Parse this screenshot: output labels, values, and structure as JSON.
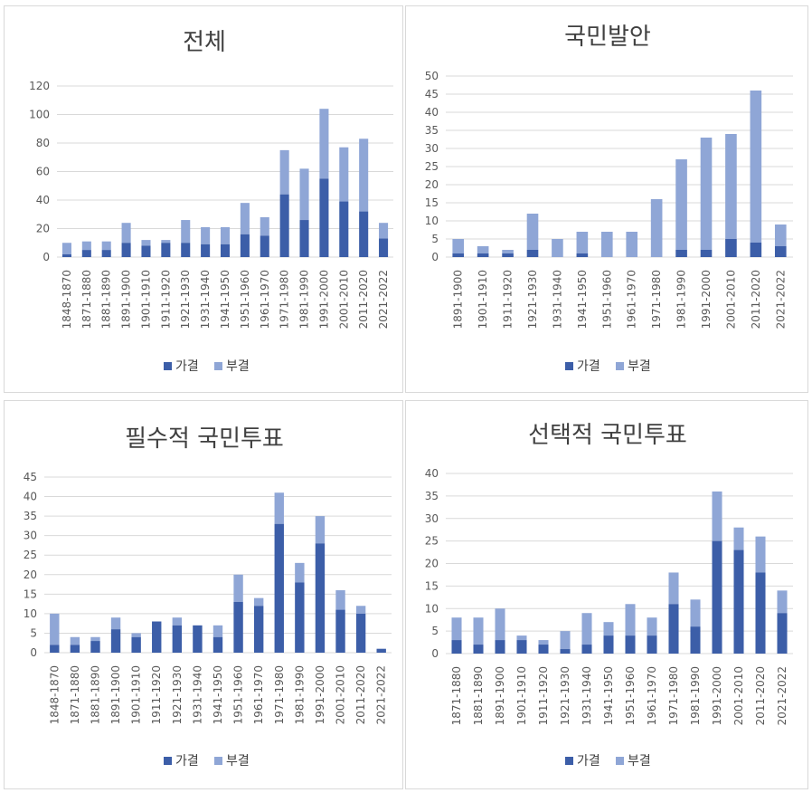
{
  "colors": {
    "passed": "#3c5ea8",
    "rejected": "#8fa6d6"
  },
  "legend": {
    "passed": "가결",
    "rejected": "부결"
  },
  "chart_data": [
    {
      "type": "bar",
      "stacked": true,
      "title": "전체",
      "categories": [
        "1848-1870",
        "1871-1880",
        "1881-1890",
        "1891-1900",
        "1901-1910",
        "1911-1920",
        "1921-1930",
        "1931-1940",
        "1941-1950",
        "1951-1960",
        "1961-1970",
        "1971-1980",
        "1981-1990",
        "1991-2000",
        "2001-2010",
        "2011-2020",
        "2021-2022"
      ],
      "series": [
        {
          "name": "가결",
          "values": [
            2,
            5,
            5,
            10,
            8,
            10,
            10,
            9,
            9,
            16,
            15,
            44,
            26,
            55,
            39,
            32,
            13
          ]
        },
        {
          "name": "부결",
          "values": [
            8,
            6,
            6,
            14,
            4,
            2,
            16,
            12,
            12,
            22,
            13,
            31,
            36,
            49,
            38,
            51,
            11
          ]
        }
      ],
      "ylim": [
        0,
        120
      ],
      "yticks": [
        0,
        20,
        40,
        60,
        80,
        100,
        120
      ],
      "legend": "bottom",
      "grid": true
    },
    {
      "type": "bar",
      "stacked": true,
      "title": "국민발안",
      "categories": [
        "1891-1900",
        "1901-1910",
        "1911-1920",
        "1921-1930",
        "1931-1940",
        "1941-1950",
        "1951-1960",
        "1961-1970",
        "1971-1980",
        "1981-1990",
        "1991-2000",
        "2001-2010",
        "2011-2020",
        "2021-2022"
      ],
      "series": [
        {
          "name": "가결",
          "values": [
            1,
            1,
            1,
            2,
            0,
            1,
            0,
            0,
            0,
            2,
            2,
            5,
            4,
            3
          ]
        },
        {
          "name": "부결",
          "values": [
            4,
            2,
            1,
            10,
            5,
            6,
            7,
            7,
            16,
            25,
            31,
            29,
            42,
            6
          ]
        }
      ],
      "ylim": [
        0,
        50
      ],
      "yticks": [
        0,
        5,
        10,
        15,
        20,
        25,
        30,
        35,
        40,
        45,
        50
      ],
      "legend": "bottom",
      "grid": true
    },
    {
      "type": "bar",
      "stacked": true,
      "title": "필수적 국민투표",
      "categories": [
        "1848-1870",
        "1871-1880",
        "1881-1890",
        "1891-1900",
        "1901-1910",
        "1911-1920",
        "1921-1930",
        "1931-1940",
        "1941-1950",
        "1951-1960",
        "1961-1970",
        "1971-1980",
        "1981-1990",
        "1991-2000",
        "2001-2010",
        "2011-2020",
        "2021-2022"
      ],
      "series": [
        {
          "name": "가결",
          "values": [
            2,
            2,
            3,
            6,
            4,
            8,
            7,
            7,
            4,
            13,
            12,
            33,
            18,
            28,
            11,
            10,
            1
          ]
        },
        {
          "name": "부결",
          "values": [
            8,
            2,
            1,
            3,
            1,
            0,
            2,
            0,
            3,
            7,
            2,
            8,
            5,
            7,
            5,
            2,
            0
          ]
        }
      ],
      "ylim": [
        0,
        45
      ],
      "yticks": [
        0,
        5,
        10,
        15,
        20,
        25,
        30,
        35,
        40,
        45
      ],
      "legend": "bottom",
      "grid": true
    },
    {
      "type": "bar",
      "stacked": true,
      "title": "선택적 국민투표",
      "categories": [
        "1871-1880",
        "1881-1890",
        "1891-1900",
        "1901-1910",
        "1911-1920",
        "1921-1930",
        "1931-1940",
        "1941-1950",
        "1951-1960",
        "1961-1970",
        "1971-1980",
        "1981-1990",
        "1991-2000",
        "2001-2010",
        "2011-2020",
        "2021-2022"
      ],
      "series": [
        {
          "name": "가결",
          "values": [
            3,
            2,
            3,
            3,
            2,
            1,
            2,
            4,
            4,
            4,
            11,
            6,
            25,
            23,
            18,
            9
          ]
        },
        {
          "name": "부결",
          "values": [
            5,
            6,
            7,
            1,
            1,
            4,
            7,
            3,
            7,
            4,
            7,
            6,
            11,
            5,
            8,
            5
          ]
        }
      ],
      "ylim": [
        0,
        40
      ],
      "yticks": [
        0,
        5,
        10,
        15,
        20,
        25,
        30,
        35,
        40
      ],
      "legend": "bottom",
      "grid": true
    }
  ]
}
